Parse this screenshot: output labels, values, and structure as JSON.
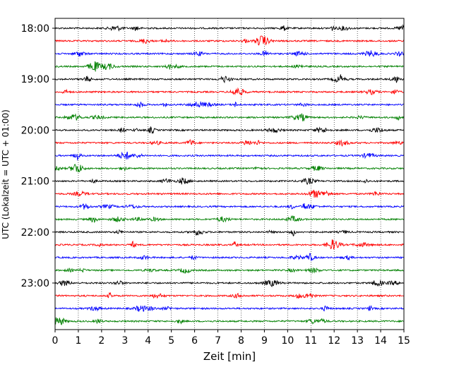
{
  "chart_data": {
    "type": "line",
    "title": "",
    "xlabel": "Zeit  [min]",
    "ylabel": "UTC (Lokalzeit = UTC + 01:00)",
    "xlim": [
      0,
      15
    ],
    "x_ticks": [
      "0",
      "1",
      "2",
      "3",
      "4",
      "5",
      "6",
      "7",
      "8",
      "9",
      "10",
      "11",
      "12",
      "13",
      "14",
      "15"
    ],
    "y_tick_labels": [
      "18:00",
      "19:00",
      "20:00",
      "21:00",
      "22:00",
      "23:00"
    ],
    "grid": "vertical dotted at each minute",
    "trace_interval_minutes": 15,
    "trace_start": "18:00",
    "trace_count": 24,
    "trace_colors": [
      "#000000",
      "#ff0000",
      "#0000ff",
      "#008000"
    ],
    "description_of_traces": "seismogram helicorder: each row is 15 minutes of ground motion noise"
  }
}
